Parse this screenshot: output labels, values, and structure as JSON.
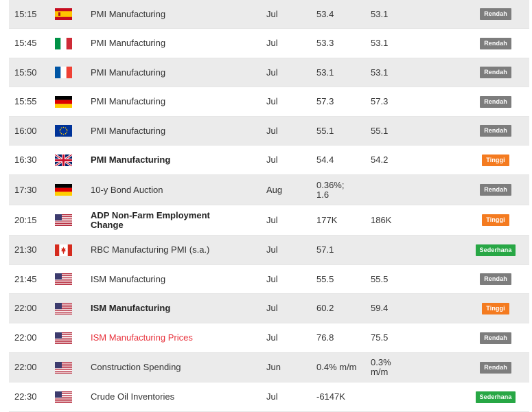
{
  "colors": {
    "low": "#7d7d7d",
    "high": "#f47b20",
    "medium": "#28a745",
    "highlight_text": "#e8343e"
  },
  "rows": [
    {
      "time": "15:15",
      "flag": "spain-flag-icon",
      "event": "PMI Manufacturing",
      "period": "Jul",
      "actual": "53.4",
      "forecast": "53.1",
      "importance": "Rendah",
      "level": "low",
      "style": "normal"
    },
    {
      "time": "15:45",
      "flag": "italy-flag-icon",
      "event": "PMI Manufacturing",
      "period": "Jul",
      "actual": "53.3",
      "forecast": "53.1",
      "importance": "Rendah",
      "level": "low",
      "style": "normal"
    },
    {
      "time": "15:50",
      "flag": "france-flag-icon",
      "event": "PMI Manufacturing",
      "period": "Jul",
      "actual": "53.1",
      "forecast": "53.1",
      "importance": "Rendah",
      "level": "low",
      "style": "normal"
    },
    {
      "time": "15:55",
      "flag": "germany-flag-icon",
      "event": "PMI Manufacturing",
      "period": "Jul",
      "actual": "57.3",
      "forecast": "57.3",
      "importance": "Rendah",
      "level": "low",
      "style": "normal"
    },
    {
      "time": "16:00",
      "flag": "eu-flag-icon",
      "event": "PMI Manufacturing",
      "period": "Jul",
      "actual": "55.1",
      "forecast": "55.1",
      "importance": "Rendah",
      "level": "low",
      "style": "normal"
    },
    {
      "time": "16:30",
      "flag": "uk-flag-icon",
      "event": "PMI Manufacturing",
      "period": "Jul",
      "actual": "54.4",
      "forecast": "54.2",
      "importance": "Tinggi",
      "level": "high",
      "style": "bold"
    },
    {
      "time": "17:30",
      "flag": "germany-flag-icon",
      "event": "10-y Bond Auction",
      "period": "Aug",
      "actual": "0.36%;\n1.6",
      "forecast": "",
      "importance": "Rendah",
      "level": "low",
      "style": "normal"
    },
    {
      "time": "20:15",
      "flag": "us-flag-icon",
      "event": "ADP Non-Farm Employment\nChange",
      "period": "Jul",
      "actual": "177K",
      "forecast": "186K",
      "importance": "Tinggi",
      "level": "high",
      "style": "bold"
    },
    {
      "time": "21:30",
      "flag": "canada-flag-icon",
      "event": "RBC Manufacturing PMI (s.a.)",
      "period": "Jul",
      "actual": "57.1",
      "forecast": "",
      "importance": "Sederhana",
      "level": "medium",
      "style": "normal"
    },
    {
      "time": "21:45",
      "flag": "us-flag-icon",
      "event": "ISM Manufacturing",
      "period": "Jul",
      "actual": "55.5",
      "forecast": "55.5",
      "importance": "Rendah",
      "level": "low",
      "style": "normal"
    },
    {
      "time": "22:00",
      "flag": "us-flag-icon",
      "event": "ISM Manufacturing",
      "period": "Jul",
      "actual": "60.2",
      "forecast": "59.4",
      "importance": "Tinggi",
      "level": "high",
      "style": "bold"
    },
    {
      "time": "22:00",
      "flag": "us-flag-icon",
      "event": "ISM Manufacturing Prices",
      "period": "Jul",
      "actual": "76.8",
      "forecast": "75.5",
      "importance": "Rendah",
      "level": "low",
      "style": "red"
    },
    {
      "time": "22:00",
      "flag": "us-flag-icon",
      "event": "Construction Spending",
      "period": "Jun",
      "actual": "0.4% m/m",
      "forecast": "0.3%\nm/m",
      "importance": "Rendah",
      "level": "low",
      "style": "normal"
    },
    {
      "time": "22:30",
      "flag": "us-flag-icon",
      "event": "Crude Oil Inventories",
      "period": "Jul",
      "actual": "-6147K",
      "forecast": "",
      "importance": "Sederhana",
      "level": "medium",
      "style": "normal"
    }
  ]
}
